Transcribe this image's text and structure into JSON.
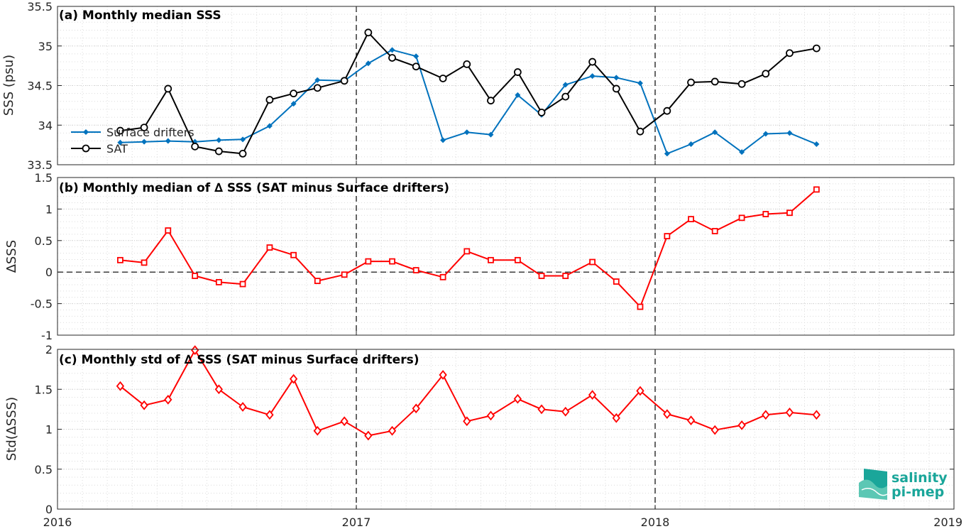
{
  "chart_data": [
    {
      "type": "line",
      "title": "(a) Monthly median SSS",
      "ylabel": "SSS (psu)",
      "xlim": [
        2016,
        2019
      ],
      "ylim": [
        33.5,
        35.5
      ],
      "yticks": [
        "33.5",
        "34",
        "34.5",
        "35",
        "35.5"
      ],
      "grid": true,
      "legend_position": "left",
      "x": [
        2016.21,
        2016.29,
        2016.37,
        2016.46,
        2016.54,
        2016.62,
        2016.71,
        2016.79,
        2016.87,
        2016.96,
        2017.04,
        2017.12,
        2017.2,
        2017.29,
        2017.37,
        2017.45,
        2017.54,
        2017.62,
        2017.7,
        2017.79,
        2017.87,
        2017.95,
        2018.04,
        2018.12,
        2018.2,
        2018.29,
        2018.37,
        2018.45,
        2018.54
      ],
      "series": [
        {
          "name": "Surface drifters",
          "color": "#0072bd",
          "marker": "diamond-filled",
          "values": [
            33.78,
            33.79,
            33.8,
            33.79,
            33.81,
            33.82,
            33.99,
            34.27,
            34.57,
            34.56,
            34.78,
            34.95,
            34.87,
            33.81,
            33.91,
            33.88,
            34.38,
            34.13,
            34.51,
            34.62,
            34.6,
            34.53,
            33.64,
            33.76,
            33.91,
            33.66,
            33.89,
            33.9,
            33.76
          ]
        },
        {
          "name": "SAT",
          "color": "#000000",
          "marker": "circle",
          "values": [
            33.93,
            33.97,
            34.46,
            33.73,
            33.67,
            33.64,
            34.32,
            34.4,
            34.47,
            34.56,
            35.17,
            34.85,
            34.74,
            34.59,
            34.77,
            34.31,
            34.67,
            34.16,
            34.36,
            34.8,
            34.46,
            33.92,
            34.18,
            34.54,
            34.55,
            34.52,
            34.65,
            34.91,
            34.97
          ]
        }
      ]
    },
    {
      "type": "line",
      "title": "(b) Monthly median of ∆ SSS (SAT minus Surface drifters)",
      "ylabel": "∆SSS",
      "xlim": [
        2016,
        2019
      ],
      "ylim": [
        -1,
        1.5
      ],
      "yticks": [
        "-1",
        "-0.5",
        "0",
        "0.5",
        "1",
        "1.5"
      ],
      "grid": true,
      "reference_line": 0,
      "x": [
        2016.21,
        2016.29,
        2016.37,
        2016.46,
        2016.54,
        2016.62,
        2016.71,
        2016.79,
        2016.87,
        2016.96,
        2017.04,
        2017.12,
        2017.2,
        2017.29,
        2017.37,
        2017.45,
        2017.54,
        2017.62,
        2017.7,
        2017.79,
        2017.87,
        2017.95,
        2018.04,
        2018.12,
        2018.2,
        2018.29,
        2018.37,
        2018.45,
        2018.54
      ],
      "series": [
        {
          "color": "#ff0000",
          "marker": "square",
          "values": [
            0.19,
            0.15,
            0.66,
            -0.06,
            -0.16,
            -0.19,
            0.39,
            0.27,
            -0.14,
            -0.04,
            0.17,
            0.17,
            0.03,
            -0.08,
            0.33,
            0.19,
            0.19,
            -0.06,
            -0.06,
            0.16,
            -0.15,
            -0.55,
            0.57,
            0.84,
            0.65,
            0.86,
            0.92,
            0.94,
            1.31
          ]
        }
      ]
    },
    {
      "type": "line",
      "title": "(c) Monthly std of ∆ SSS (SAT minus Surface drifters)",
      "ylabel": "Std(∆SSS)",
      "xlim": [
        2016,
        2019
      ],
      "ylim": [
        0,
        2
      ],
      "yticks": [
        "0",
        "0.5",
        "1",
        "1.5",
        "2"
      ],
      "xticks": [
        "2016",
        "2017",
        "2018",
        "2019"
      ],
      "grid": true,
      "x": [
        2016.21,
        2016.29,
        2016.37,
        2016.46,
        2016.54,
        2016.62,
        2016.71,
        2016.79,
        2016.87,
        2016.96,
        2017.04,
        2017.12,
        2017.2,
        2017.29,
        2017.37,
        2017.45,
        2017.54,
        2017.62,
        2017.7,
        2017.79,
        2017.87,
        2017.95,
        2018.04,
        2018.12,
        2018.2,
        2018.29,
        2018.37,
        2018.45,
        2018.54
      ],
      "series": [
        {
          "color": "#ff0000",
          "marker": "diamond",
          "values": [
            1.54,
            1.3,
            1.37,
            1.99,
            1.5,
            1.28,
            1.18,
            1.63,
            0.98,
            1.1,
            0.92,
            0.98,
            1.26,
            1.68,
            1.1,
            1.17,
            1.38,
            1.25,
            1.22,
            1.43,
            1.14,
            1.48,
            1.19,
            1.11,
            0.99,
            1.05,
            1.18,
            1.21,
            1.18
          ]
        }
      ]
    }
  ],
  "logo": {
    "line1": "salinity",
    "line2": "pi-mep"
  },
  "colors": {
    "drifters": "#0072bd",
    "sat": "#000000",
    "delta": "#ff0000",
    "logo": "#1aa69a",
    "grid": "#cccccc"
  }
}
